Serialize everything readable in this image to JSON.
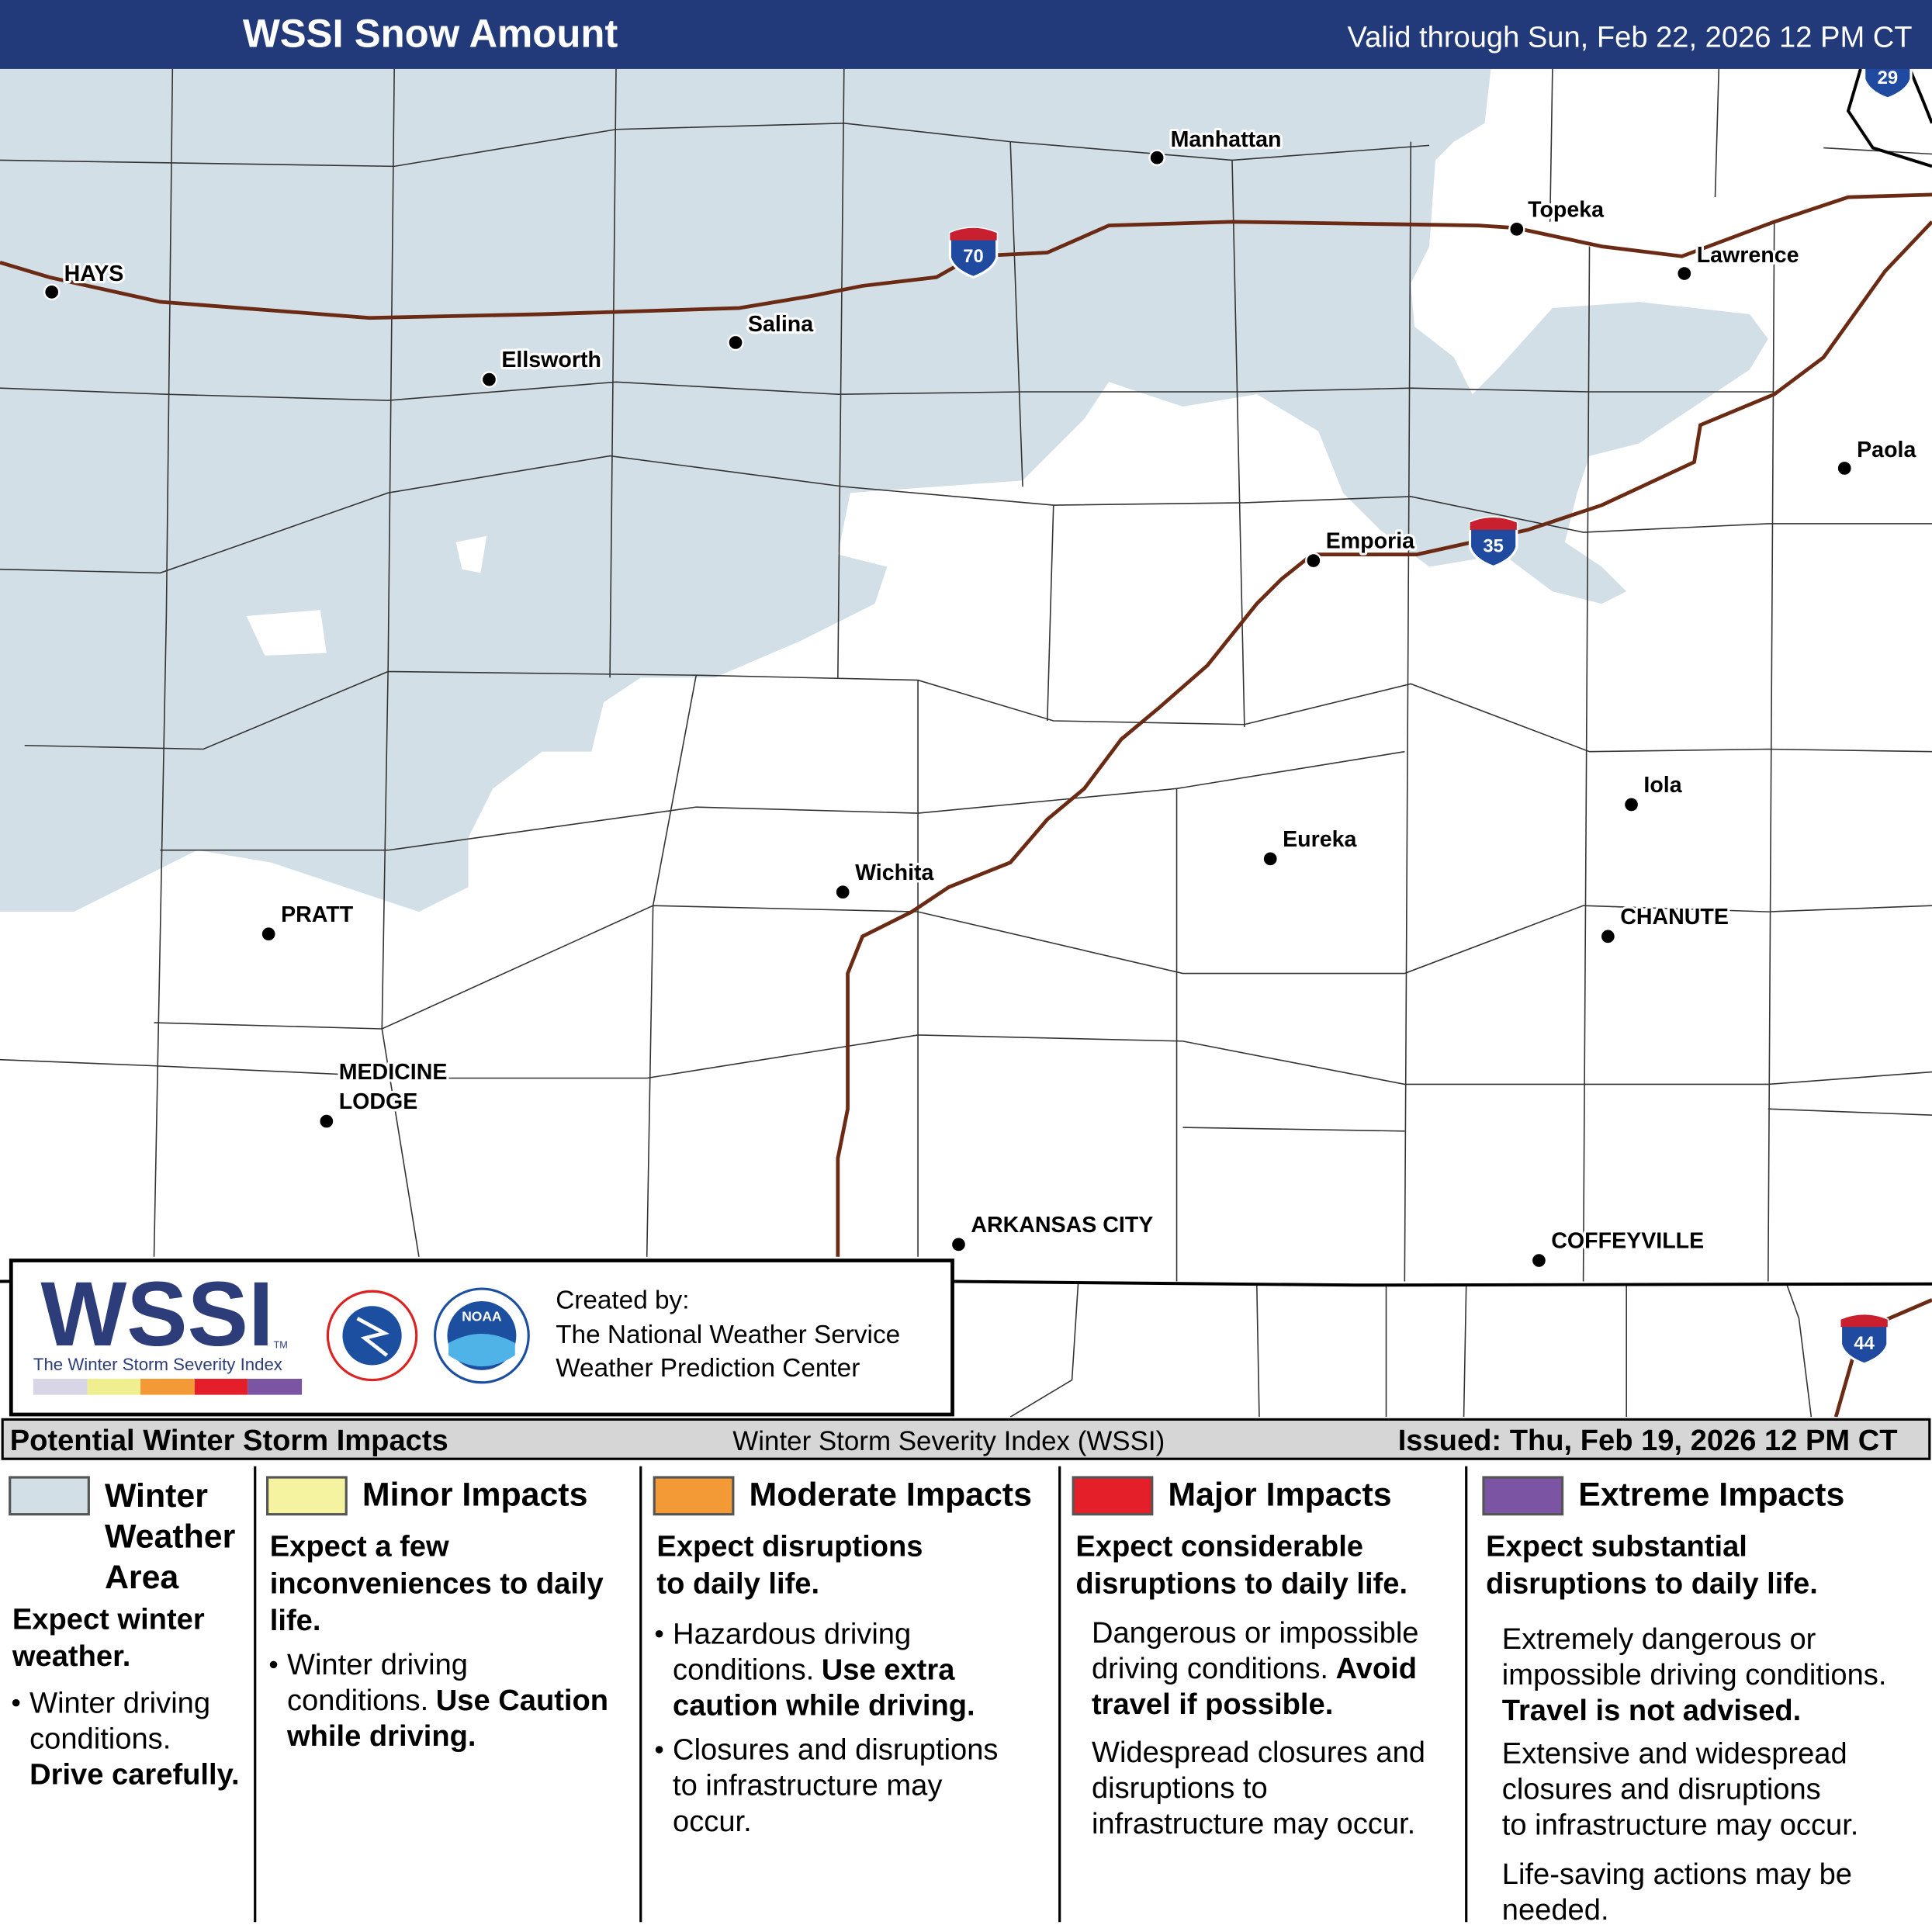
{
  "header": {
    "title": "WSSI Snow Amount",
    "valid": "Valid through Sun, Feb 22, 2026 12 PM CT"
  },
  "map": {
    "cities": [
      {
        "label": [
          "HAYS"
        ]
      },
      {
        "label": [
          "Manhattan"
        ]
      },
      {
        "label": [
          "Topeka"
        ]
      },
      {
        "label": [
          "Lawrence"
        ]
      },
      {
        "label": [
          "Salina"
        ]
      },
      {
        "label": [
          "Ellsworth"
        ]
      },
      {
        "label": [
          "Paola"
        ]
      },
      {
        "label": [
          "Emporia"
        ]
      },
      {
        "label": [
          "Iola"
        ]
      },
      {
        "label": [
          "Eureka"
        ]
      },
      {
        "label": [
          "Wichita"
        ]
      },
      {
        "label": [
          "CHANUTE"
        ]
      },
      {
        "label": [
          "PRATT"
        ]
      },
      {
        "label": [
          "MEDICINE",
          "LODGE"
        ]
      },
      {
        "label": [
          "ARKANSAS CITY"
        ]
      },
      {
        "label": [
          "COFFEYVILLE"
        ]
      }
    ],
    "interstates": [
      "70",
      "35",
      "29",
      "44"
    ]
  },
  "logo": {
    "wordmark": "WSSI",
    "tm": "TM",
    "subtitle": "The Winter Storm Severity Index",
    "noaa": "NOAA",
    "credit": [
      "Created by:",
      "The National Weather Service",
      "Weather Prediction Center"
    ]
  },
  "legend": {
    "title": "Potential Winter Storm Impacts",
    "center": "Winter Storm Severity Index (WSSI)",
    "issued": "Issued: Thu, Feb 19, 2026 12 PM CT",
    "columns": [
      {
        "name": [
          "Winter",
          "Weather",
          "Area"
        ],
        "color": "#d3dfe6",
        "headline": [
          "Expect winter",
          "weather."
        ],
        "bulleted": true,
        "blocks": [
          [
            {
              "text": "Winter driving"
            },
            {
              "text": "conditions."
            },
            {
              "bold": "Drive carefully."
            }
          ]
        ]
      },
      {
        "name": [
          "Minor Impacts"
        ],
        "color": "#f5f3a0",
        "headline": [
          "Expect a few",
          "inconveniences to daily",
          "life."
        ],
        "bulleted": true,
        "blocks": [
          [
            {
              "text": "Winter driving"
            },
            {
              "text": "conditions.",
              "bold": "Use Caution"
            },
            {
              "bold": "while driving."
            }
          ]
        ]
      },
      {
        "name": [
          "Moderate Impacts"
        ],
        "color": "#f39a36",
        "headline": [
          "Expect disruptions",
          "to daily life."
        ],
        "bulleted": true,
        "blocks": [
          [
            {
              "text": "Hazardous driving"
            },
            {
              "text": "conditions.",
              "bold": "Use extra"
            },
            {
              "bold": "caution while driving."
            }
          ],
          [
            {
              "text": "Closures and disruptions"
            },
            {
              "text": "to infrastructure may"
            },
            {
              "text": "occur."
            }
          ]
        ]
      },
      {
        "name": [
          "Major Impacts"
        ],
        "color": "#e51f2a",
        "headline": [
          "Expect considerable",
          "disruptions to daily life."
        ],
        "bulleted": false,
        "blocks": [
          [
            {
              "text": "Dangerous or impossible"
            },
            {
              "text": "driving conditions.",
              "bold": "Avoid"
            },
            {
              "bold": "travel if possible."
            }
          ],
          [
            {
              "text": "Widespread closures and"
            },
            {
              "text": "disruptions to"
            },
            {
              "text": "infrastructure may occur."
            }
          ]
        ]
      },
      {
        "name": [
          "Extreme Impacts"
        ],
        "color": "#7b54a3",
        "headline": [
          "Expect substantial",
          "disruptions to daily life."
        ],
        "bulleted": false,
        "blocks": [
          [
            {
              "text": "Extremely dangerous or"
            },
            {
              "text": "impossible driving conditions."
            },
            {
              "bold": "Travel is not advised."
            }
          ],
          [
            {
              "text": "Extensive and widespread"
            },
            {
              "text": "closures and disruptions"
            },
            {
              "text": "to infrastructure may occur."
            }
          ],
          [
            {
              "text": "Life-saving actions may be"
            },
            {
              "text": "needed."
            }
          ]
        ]
      }
    ]
  }
}
